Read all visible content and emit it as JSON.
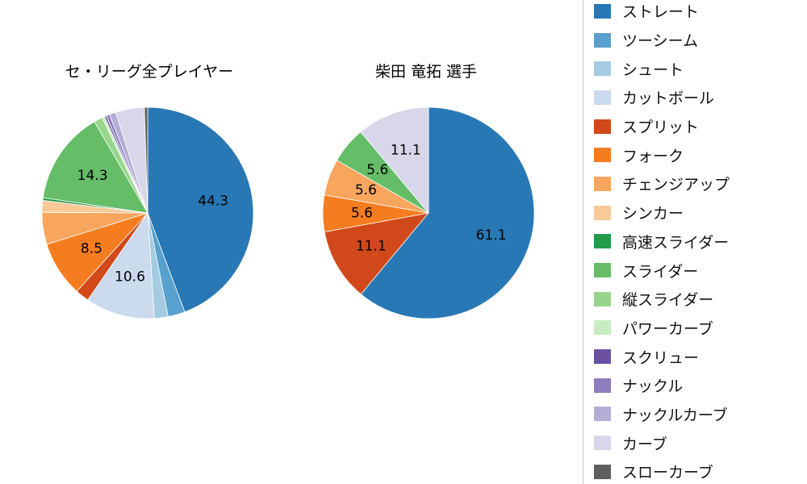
{
  "page": {
    "background": "#ffffff"
  },
  "chart_data": [
    {
      "type": "pie",
      "title": "セ・リーグ全プレイヤー",
      "start_angle": "top",
      "direction": "clockwise",
      "label_unit": "percent",
      "slices": [
        {
          "name": "ストレート",
          "value": 44.3,
          "label": "44.3",
          "color": "#2878b5"
        },
        {
          "name": "ツーシーム",
          "value": 2.6,
          "label": null,
          "color": "#58a1ce"
        },
        {
          "name": "シュート",
          "value": 2.1,
          "label": null,
          "color": "#a5cbe1"
        },
        {
          "name": "カットボール",
          "value": 10.6,
          "label": "10.6",
          "color": "#ccdaee"
        },
        {
          "name": "スプリット",
          "value": 2.1,
          "label": null,
          "color": "#d1491a"
        },
        {
          "name": "フォーク",
          "value": 8.5,
          "label": "8.5",
          "color": "#f57d1f"
        },
        {
          "name": "チェンジアップ",
          "value": 4.9,
          "label": null,
          "color": "#f8a55d"
        },
        {
          "name": "シンカー",
          "value": 1.8,
          "label": null,
          "color": "#fbc998"
        },
        {
          "name": "高速スライダー",
          "value": 0.4,
          "label": null,
          "color": "#219a49"
        },
        {
          "name": "スライダー",
          "value": 14.3,
          "label": "14.3",
          "color": "#65bd68"
        },
        {
          "name": "縦スライダー",
          "value": 1.3,
          "label": null,
          "color": "#98d58c"
        },
        {
          "name": "パワーカーブ",
          "value": 0.4,
          "label": null,
          "color": "#c8ecc2"
        },
        {
          "name": "スクリュー",
          "value": 0.3,
          "label": null,
          "color": "#6a51a3"
        },
        {
          "name": "ナックル",
          "value": 0.5,
          "label": null,
          "color": "#8d7dbe"
        },
        {
          "name": "ナックルカーブ",
          "value": 1.0,
          "label": null,
          "color": "#b4aed6"
        },
        {
          "name": "カーブ",
          "value": 4.4,
          "label": null,
          "color": "#d8d7ea"
        },
        {
          "name": "スローカーブ",
          "value": 0.5,
          "label": null,
          "color": "#5f5f5f"
        }
      ]
    },
    {
      "type": "pie",
      "title": "柴田 竜拓 選手",
      "start_angle": "top",
      "direction": "clockwise",
      "label_unit": "percent",
      "slices": [
        {
          "name": "ストレート",
          "value": 61.1,
          "label": "61.1",
          "color": "#2878b5"
        },
        {
          "name": "スプリット",
          "value": 11.1,
          "label": "11.1",
          "color": "#d1491a"
        },
        {
          "name": "フォーク",
          "value": 5.6,
          "label": "5.6",
          "color": "#f57d1f"
        },
        {
          "name": "チェンジアップ",
          "value": 5.6,
          "label": "5.6",
          "color": "#f8a55d"
        },
        {
          "name": "スライダー",
          "value": 5.6,
          "label": "5.6",
          "color": "#65bd68"
        },
        {
          "name": "カーブ",
          "value": 11.1,
          "label": "11.1",
          "color": "#d8d7ea"
        }
      ]
    }
  ],
  "legend": {
    "position": "right",
    "items": [
      {
        "label": "ストレート",
        "color": "#2878b5"
      },
      {
        "label": "ツーシーム",
        "color": "#58a1ce"
      },
      {
        "label": "シュート",
        "color": "#a5cbe1"
      },
      {
        "label": "カットボール",
        "color": "#ccdaee"
      },
      {
        "label": "スプリット",
        "color": "#d1491a"
      },
      {
        "label": "フォーク",
        "color": "#f57d1f"
      },
      {
        "label": "チェンジアップ",
        "color": "#f8a55d"
      },
      {
        "label": "シンカー",
        "color": "#fbc998"
      },
      {
        "label": "高速スライダー",
        "color": "#219a49"
      },
      {
        "label": "スライダー",
        "color": "#65bd68"
      },
      {
        "label": "縦スライダー",
        "color": "#98d58c"
      },
      {
        "label": "パワーカーブ",
        "color": "#c8ecc2"
      },
      {
        "label": "スクリュー",
        "color": "#6a51a3"
      },
      {
        "label": "ナックル",
        "color": "#8d7dbe"
      },
      {
        "label": "ナックルカーブ",
        "color": "#b4aed6"
      },
      {
        "label": "カーブ",
        "color": "#d8d7ea"
      },
      {
        "label": "スローカーブ",
        "color": "#5f5f5f"
      }
    ]
  }
}
